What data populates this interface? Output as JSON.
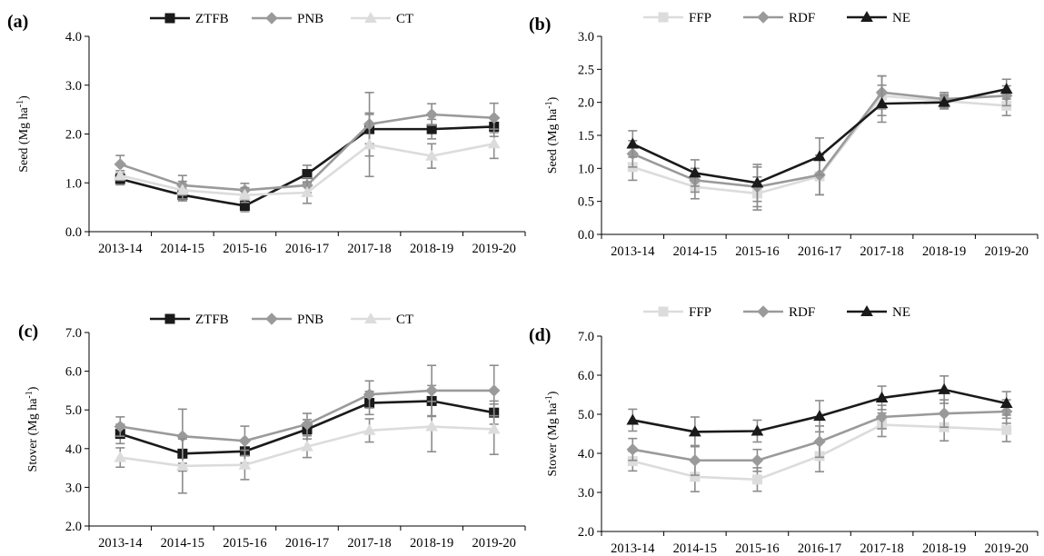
{
  "colors": {
    "black": "#1a1a1a",
    "gray": "#9a9a9a",
    "light": "#dcdcdc",
    "error_bar": "#8c8c8c"
  },
  "categories": [
    "2013-14",
    "2014-15",
    "2015-16",
    "2016-17",
    "2017-18",
    "2018-19",
    "2019-20"
  ],
  "chart_data": [
    {
      "panel": "(a)",
      "type": "line",
      "ylabel": "Seed (Mg ha-1)",
      "ylim": [
        0.0,
        4.0
      ],
      "yticks": [
        "0.0",
        "1.0",
        "2.0",
        "3.0",
        "4.0"
      ],
      "categories": [
        "2013-14",
        "2014-15",
        "2015-16",
        "2016-17",
        "2017-18",
        "2018-19",
        "2019-20"
      ],
      "legend": "top",
      "series": [
        {
          "name": "ZTFB",
          "marker": "square",
          "color": "#1a1a1a",
          "values": [
            1.08,
            0.75,
            0.53,
            1.18,
            2.1,
            2.1,
            2.15
          ],
          "err": [
            0.12,
            0.12,
            0.12,
            0.18,
            0.3,
            0.2,
            0.2
          ]
        },
        {
          "name": "PNB",
          "marker": "diamond",
          "color": "#9a9a9a",
          "values": [
            1.38,
            0.95,
            0.85,
            0.95,
            2.2,
            2.4,
            2.33
          ],
          "err": [
            0.18,
            0.2,
            0.14,
            0.15,
            0.65,
            0.22,
            0.3
          ]
        },
        {
          "name": "CT",
          "marker": "triangle",
          "color": "#dcdcdc",
          "values": [
            1.15,
            0.85,
            0.75,
            0.8,
            1.78,
            1.55,
            1.8
          ],
          "err": [
            0.1,
            0.18,
            0.15,
            0.22,
            0.65,
            0.25,
            0.3
          ]
        }
      ]
    },
    {
      "panel": "(b)",
      "type": "line",
      "ylabel": "Seed (Mg ha-1)",
      "ylim": [
        0.0,
        3.0
      ],
      "yticks": [
        "0.0",
        "0.5",
        "1.0",
        "1.5",
        "2.0",
        "2.5",
        "3.0"
      ],
      "categories": [
        "2013-14",
        "2014-15",
        "2015-16",
        "2016-17",
        "2017-18",
        "2018-19",
        "2019-20"
      ],
      "legend": "top",
      "series": [
        {
          "name": "FFP",
          "marker": "square",
          "color": "#dcdcdc",
          "values": [
            1.02,
            0.72,
            0.62,
            0.88,
            2.1,
            2.02,
            1.95
          ],
          "err": [
            0.2,
            0.18,
            0.25,
            0.28,
            0.3,
            0.1,
            0.15
          ]
        },
        {
          "name": "RDF",
          "marker": "diamond",
          "color": "#9a9a9a",
          "values": [
            1.22,
            0.82,
            0.72,
            0.9,
            2.15,
            2.05,
            2.1
          ],
          "err": [
            0.2,
            0.18,
            0.3,
            0.3,
            0.25,
            0.1,
            0.15
          ]
        },
        {
          "name": "NE",
          "marker": "triangle",
          "color": "#1a1a1a",
          "values": [
            1.37,
            0.93,
            0.78,
            1.18,
            1.98,
            2.0,
            2.2
          ],
          "err": [
            0.2,
            0.2,
            0.28,
            0.28,
            0.28,
            0.1,
            0.15
          ]
        }
      ]
    },
    {
      "panel": "(c)",
      "type": "line",
      "ylabel": "Stover (Mg ha-1)",
      "ylim": [
        2.0,
        7.0
      ],
      "yticks": [
        "2.0",
        "3.0",
        "4.0",
        "5.0",
        "6.0",
        "7.0"
      ],
      "categories": [
        "2013-14",
        "2014-15",
        "2015-16",
        "2016-17",
        "2017-18",
        "2018-19",
        "2019-20"
      ],
      "legend": "top",
      "series": [
        {
          "name": "ZTFB",
          "marker": "square",
          "color": "#1a1a1a",
          "values": [
            4.38,
            3.87,
            3.93,
            4.5,
            5.18,
            5.23,
            4.93
          ],
          "err": [
            0.25,
            0.45,
            0.3,
            0.25,
            0.3,
            0.4,
            0.3
          ]
        },
        {
          "name": "PNB",
          "marker": "diamond",
          "color": "#9a9a9a",
          "values": [
            4.57,
            4.32,
            4.2,
            4.63,
            5.4,
            5.5,
            5.5
          ],
          "err": [
            0.25,
            0.7,
            0.38,
            0.28,
            0.35,
            0.65,
            0.65
          ]
        },
        {
          "name": "CT",
          "marker": "triangle",
          "color": "#dcdcdc",
          "values": [
            3.77,
            3.55,
            3.58,
            4.05,
            4.47,
            4.57,
            4.5
          ],
          "err": [
            0.25,
            0.7,
            0.38,
            0.28,
            0.3,
            0.65,
            0.65
          ]
        }
      ]
    },
    {
      "panel": "(d)",
      "type": "line",
      "ylabel": "Stover (Mg ha-1)",
      "ylim": [
        2.0,
        7.0
      ],
      "yticks": [
        "2.0",
        "3.0",
        "4.0",
        "5.0",
        "6.0",
        "7.0"
      ],
      "categories": [
        "2013-14",
        "2014-15",
        "2015-16",
        "2016-17",
        "2017-18",
        "2018-19",
        "2019-20"
      ],
      "legend": "top",
      "series": [
        {
          "name": "FFP",
          "marker": "square",
          "color": "#dcdcdc",
          "values": [
            3.8,
            3.4,
            3.33,
            3.93,
            4.73,
            4.67,
            4.6
          ],
          "err": [
            0.25,
            0.38,
            0.3,
            0.4,
            0.3,
            0.35,
            0.3
          ]
        },
        {
          "name": "RDF",
          "marker": "diamond",
          "color": "#9a9a9a",
          "values": [
            4.1,
            3.82,
            3.82,
            4.3,
            4.93,
            5.02,
            5.07
          ],
          "err": [
            0.28,
            0.38,
            0.28,
            0.4,
            0.3,
            0.35,
            0.3
          ]
        },
        {
          "name": "NE",
          "marker": "triangle",
          "color": "#1a1a1a",
          "values": [
            4.85,
            4.55,
            4.57,
            4.95,
            5.42,
            5.63,
            5.28
          ],
          "err": [
            0.28,
            0.38,
            0.28,
            0.4,
            0.3,
            0.35,
            0.3
          ]
        }
      ]
    }
  ]
}
